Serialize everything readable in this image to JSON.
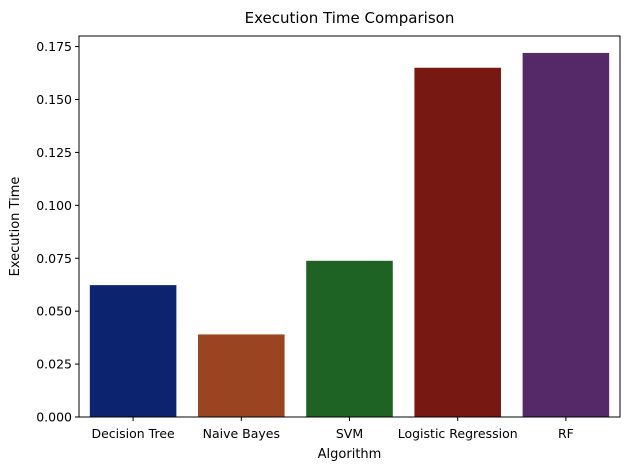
{
  "chart_data": {
    "type": "bar",
    "title": "Execution Time Comparison",
    "xlabel": "Algorithm",
    "ylabel": "Execution Time",
    "categories": [
      "Decision Tree",
      "Naive Bayes",
      "SVM",
      "Logistic Regression",
      "RF"
    ],
    "values": [
      0.0623,
      0.039,
      0.0738,
      0.165,
      0.172
    ],
    "colors": [
      "#0c2470",
      "#9a4421",
      "#1e6224",
      "#781812",
      "#552967"
    ],
    "ylim": [
      0,
      0.18
    ],
    "yticks": [
      "0.000",
      "0.025",
      "0.050",
      "0.075",
      "0.100",
      "0.125",
      "0.150",
      "0.175"
    ],
    "ytick_values": [
      0,
      0.025,
      0.05,
      0.075,
      0.1,
      0.125,
      0.15,
      0.175
    ],
    "grid": false,
    "legend": false
  }
}
